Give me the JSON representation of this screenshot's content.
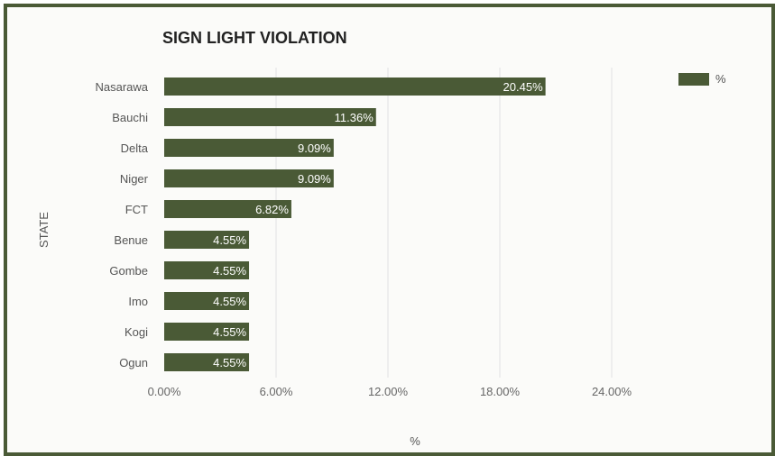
{
  "chart_data": {
    "type": "bar",
    "orientation": "horizontal",
    "title": "SIGN LIGHT VIOLATION",
    "xlabel": "%",
    "ylabel": "STATE",
    "categories": [
      "Nasarawa",
      "Bauchi",
      "Delta",
      "Niger",
      "FCT",
      "Benue",
      "Gombe",
      "Imo",
      "Kogi",
      "Ogun"
    ],
    "series": [
      {
        "name": "%",
        "values": [
          20.45,
          11.36,
          9.09,
          9.09,
          6.82,
          4.55,
          4.55,
          4.55,
          4.55,
          4.55
        ],
        "labels": [
          "20.45%",
          "11.36%",
          "9.09%",
          "9.09%",
          "6.82%",
          "4.55%",
          "4.55%",
          "4.55%",
          "4.55%",
          "4.55%"
        ]
      }
    ],
    "xlim": [
      0,
      30
    ],
    "xticks": [
      0,
      6,
      12,
      18,
      24
    ],
    "xtick_labels": [
      "0.00%",
      "6.00%",
      "12.00%",
      "18.00%",
      "24.00%"
    ],
    "grid": true,
    "legend": "top-right",
    "colors": {
      "bar": "#4a5a36",
      "frame": "#4a5a36"
    }
  }
}
